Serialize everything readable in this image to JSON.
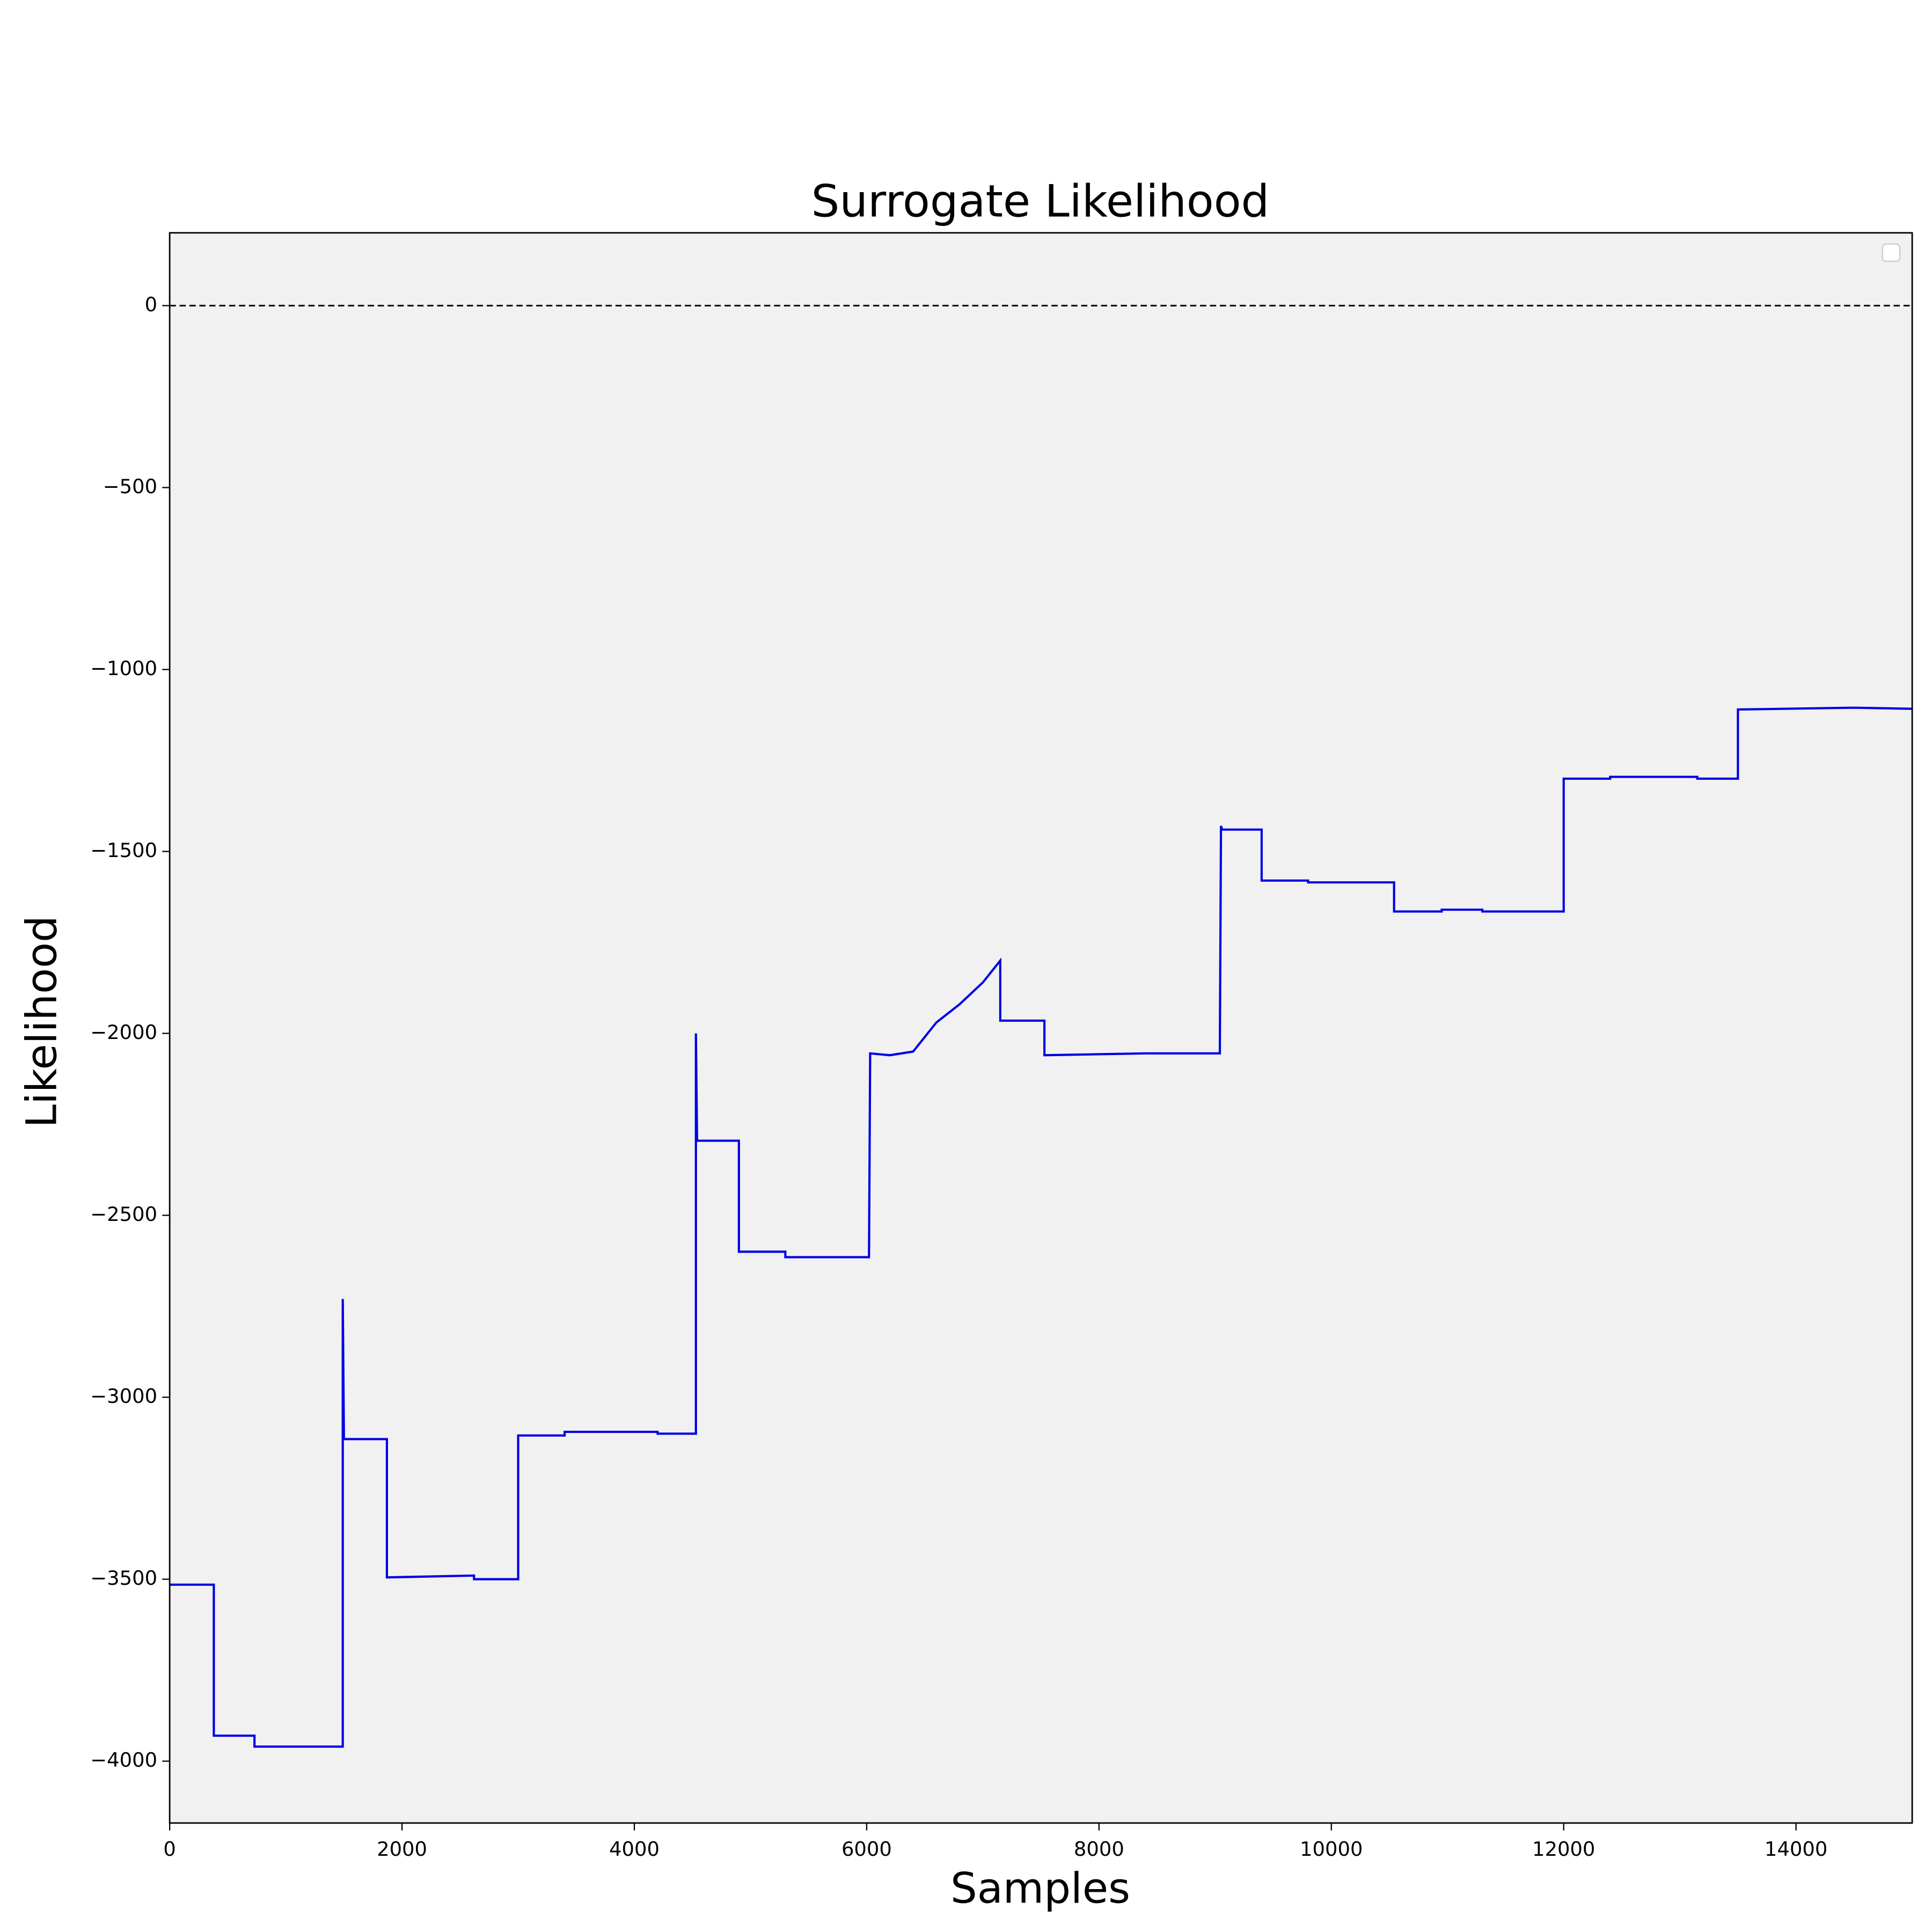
{
  "chart_data": {
    "type": "line",
    "title": "Surrogate  Likelihood",
    "x_label": "Samples",
    "y_label": "Likelihood",
    "x": [
      0,
      380,
      380,
      730,
      730,
      1490,
      1490,
      1500,
      1870,
      1870,
      2620,
      2620,
      3000,
      3000,
      3400,
      3400,
      4200,
      4200,
      4530,
      4530,
      4540,
      4900,
      4900,
      5300,
      5300,
      6020,
      6030,
      6200,
      6400,
      6600,
      6800,
      7000,
      7150,
      7150,
      7530,
      7530,
      8400,
      9040,
      9050,
      9060,
      9400,
      9400,
      9800,
      9800,
      10540,
      10540,
      10950,
      10950,
      11300,
      11300,
      12000,
      12000,
      12400,
      12400,
      13150,
      13150,
      13500,
      13500,
      13900,
      14500,
      15000
    ],
    "series": [
      {
        "color": "#0000e6",
        "values": [
          -3515,
          -3515,
          -3930,
          -3930,
          -3960,
          -3960,
          -2730,
          -3115,
          -3115,
          -3495,
          -3490,
          -3500,
          -3500,
          -3105,
          -3105,
          -3095,
          -3095,
          -3100,
          -3100,
          -2000,
          -2295,
          -2295,
          -2600,
          -2600,
          -2615,
          -2615,
          -2055,
          -2060,
          -2050,
          -1970,
          -1920,
          -1860,
          -1800,
          -1965,
          -1965,
          -2060,
          -2055,
          -2055,
          -1430,
          -1440,
          -1440,
          -1580,
          -1580,
          -1585,
          -1585,
          -1665,
          -1665,
          -1660,
          -1660,
          -1665,
          -1665,
          -1300,
          -1300,
          -1295,
          -1295,
          -1300,
          -1300,
          -1110,
          -1108,
          -1105,
          -1108
        ]
      }
    ],
    "hline": 0,
    "xlim": [
      0,
      15000
    ],
    "ylim": [
      -4170,
      200
    ],
    "xticks": [
      0,
      2000,
      4000,
      6000,
      8000,
      10000,
      12000,
      14000
    ],
    "yticks": [
      0,
      {
        "value": -500,
        "label": "−500"
      },
      {
        "value": -1000,
        "label": "−1000"
      },
      {
        "value": -1500,
        "label": "−1500"
      },
      {
        "value": -2000,
        "label": "−2000"
      },
      {
        "value": -2500,
        "label": "−2500"
      },
      {
        "value": -3000,
        "label": "−3000"
      },
      {
        "value": -3500,
        "label": "−3500"
      },
      {
        "value": -4000,
        "label": "−4000"
      }
    ],
    "grid": false
  }
}
